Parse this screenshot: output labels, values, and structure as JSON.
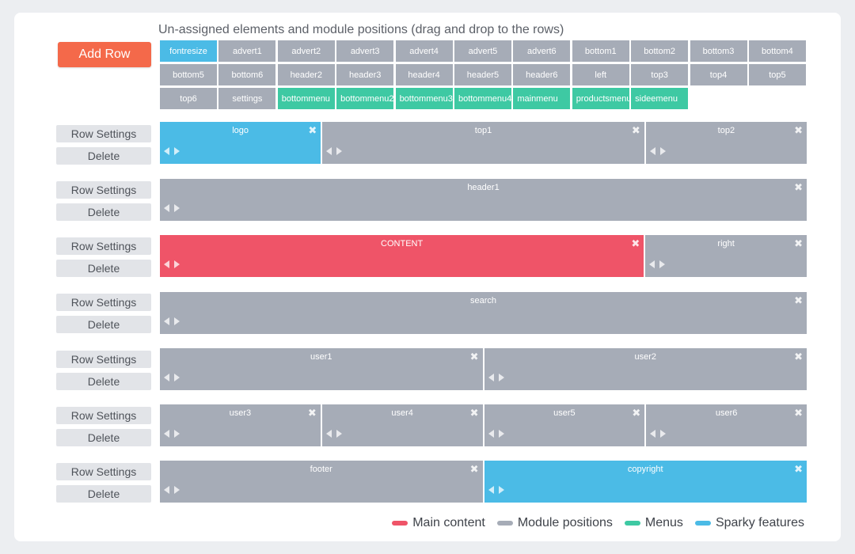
{
  "heading": "Un-assigned elements and module positions (drag and drop to the rows)",
  "add_row_label": "Add Row",
  "colors": {
    "main": "#ef5468",
    "module": "#a6acb7",
    "menu": "#3ec9a3",
    "sparky": "#4bbbe6",
    "add_row": "#f4694a"
  },
  "unassigned": [
    {
      "label": "fontresize",
      "type": "sparky"
    },
    {
      "label": "advert1",
      "type": "module"
    },
    {
      "label": "advert2",
      "type": "module"
    },
    {
      "label": "advert3",
      "type": "module"
    },
    {
      "label": "advert4",
      "type": "module"
    },
    {
      "label": "advert5",
      "type": "module"
    },
    {
      "label": "advert6",
      "type": "module"
    },
    {
      "label": "bottom1",
      "type": "module"
    },
    {
      "label": "bottom2",
      "type": "module"
    },
    {
      "label": "bottom3",
      "type": "module"
    },
    {
      "label": "bottom4",
      "type": "module"
    },
    {
      "label": "bottom5",
      "type": "module"
    },
    {
      "label": "bottom6",
      "type": "module"
    },
    {
      "label": "header2",
      "type": "module"
    },
    {
      "label": "header3",
      "type": "module"
    },
    {
      "label": "header4",
      "type": "module"
    },
    {
      "label": "header5",
      "type": "module"
    },
    {
      "label": "header6",
      "type": "module"
    },
    {
      "label": "left",
      "type": "module"
    },
    {
      "label": "top3",
      "type": "module"
    },
    {
      "label": "top4",
      "type": "module"
    },
    {
      "label": "top5",
      "type": "module"
    },
    {
      "label": "top6",
      "type": "module"
    },
    {
      "label": "settings",
      "type": "module"
    },
    {
      "label": "bottommenu",
      "type": "menu"
    },
    {
      "label": "bottommenu2",
      "type": "menu"
    },
    {
      "label": "bottommenu3",
      "type": "menu"
    },
    {
      "label": "bottommenu4",
      "type": "menu"
    },
    {
      "label": "mainmenu",
      "type": "menu"
    },
    {
      "label": "productsmenu",
      "type": "menu"
    },
    {
      "label": "sideemenu",
      "type": "menu"
    }
  ],
  "row_buttons": {
    "settings_label": "Row Settings",
    "delete_label": "Delete"
  },
  "rows": [
    {
      "cells": [
        {
          "label": "logo",
          "type": "sparky",
          "span": 4
        },
        {
          "label": "top1",
          "type": "module",
          "span": 8
        },
        {
          "label": "top2",
          "type": "module",
          "span": 4
        }
      ]
    },
    {
      "cells": [
        {
          "label": "header1",
          "type": "module",
          "span": 16
        }
      ]
    },
    {
      "cells": [
        {
          "label": "CONTENT",
          "type": "main",
          "span": 12
        },
        {
          "label": "right",
          "type": "module",
          "span": 4
        }
      ]
    },
    {
      "cells": [
        {
          "label": "search",
          "type": "module",
          "span": 16
        }
      ]
    },
    {
      "cells": [
        {
          "label": "user1",
          "type": "module",
          "span": 8
        },
        {
          "label": "user2",
          "type": "module",
          "span": 8
        }
      ]
    },
    {
      "cells": [
        {
          "label": "user3",
          "type": "module",
          "span": 4
        },
        {
          "label": "user4",
          "type": "module",
          "span": 4
        },
        {
          "label": "user5",
          "type": "module",
          "span": 4
        },
        {
          "label": "user6",
          "type": "module",
          "span": 4
        }
      ]
    },
    {
      "cells": [
        {
          "label": "footer",
          "type": "module",
          "span": 8
        },
        {
          "label": "copyright",
          "type": "sparky",
          "span": 8
        }
      ]
    }
  ],
  "legend": [
    {
      "label": "Main content",
      "type": "main"
    },
    {
      "label": "Module positions",
      "type": "module"
    },
    {
      "label": "Menus",
      "type": "menu"
    },
    {
      "label": "Sparky features",
      "type": "sparky"
    }
  ]
}
